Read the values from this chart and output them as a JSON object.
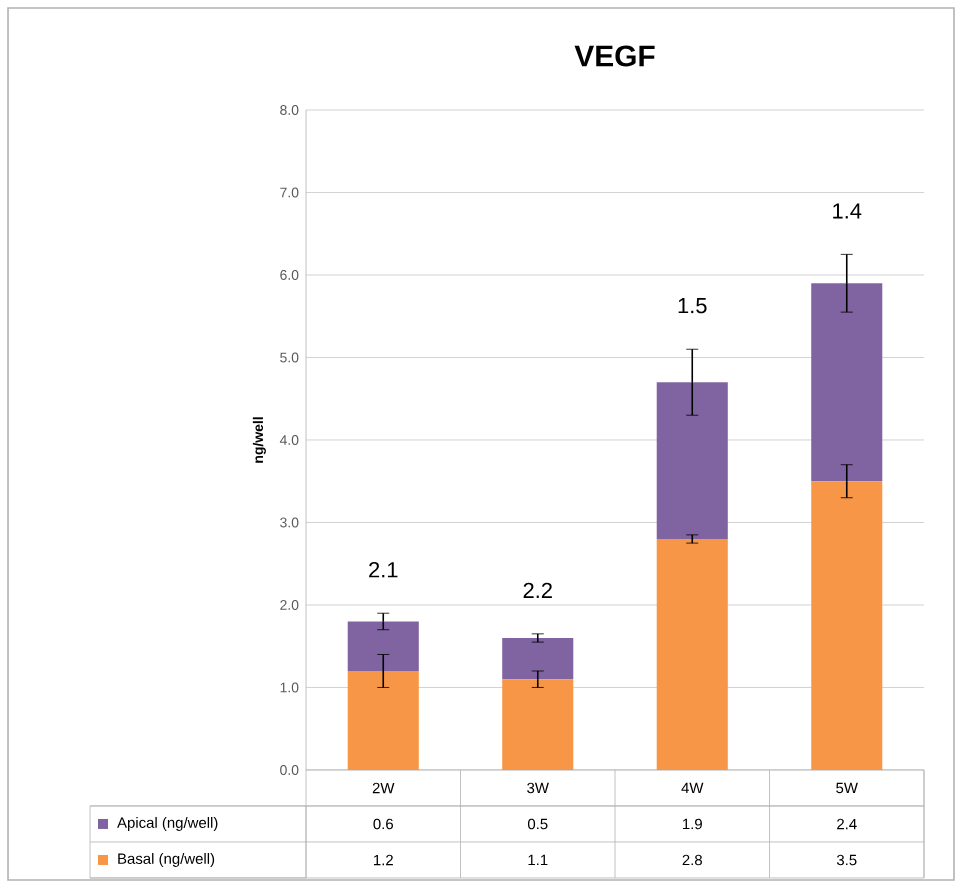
{
  "chart_data": {
    "type": "bar",
    "title": "VEGF",
    "ylabel": "ng/well",
    "categories": [
      "2W",
      "3W",
      "4W",
      "5W"
    ],
    "stacked": true,
    "series": [
      {
        "name": "Basal (ng/well)",
        "color": "#f79646",
        "values": [
          1.2,
          1.1,
          2.8,
          3.5
        ],
        "errors": [
          0.2,
          0.1,
          0.05,
          0.2
        ]
      },
      {
        "name": "Apical (ng/well)",
        "color": "#8064a2",
        "values": [
          0.6,
          0.5,
          1.9,
          2.4
        ],
        "errors": [
          0.1,
          0.05,
          0.4,
          0.35
        ]
      }
    ],
    "ylim": [
      0,
      8
    ],
    "yticks": [
      {
        "value": 0,
        "label": "0.0"
      },
      {
        "value": 1,
        "label": "1.0"
      },
      {
        "value": 2,
        "label": "2.0"
      },
      {
        "value": 3,
        "label": "3.0"
      },
      {
        "value": 4,
        "label": "4.0"
      },
      {
        "value": 5,
        "label": "5.0"
      },
      {
        "value": 6,
        "label": "6.0"
      },
      {
        "value": 7,
        "label": "7.0"
      },
      {
        "value": 8,
        "label": "8.0"
      }
    ],
    "grid": "y",
    "legend": "bottom",
    "data_labels": true,
    "annotations": [
      "2.1",
      "2.2",
      "1.5",
      "1.4"
    ]
  }
}
